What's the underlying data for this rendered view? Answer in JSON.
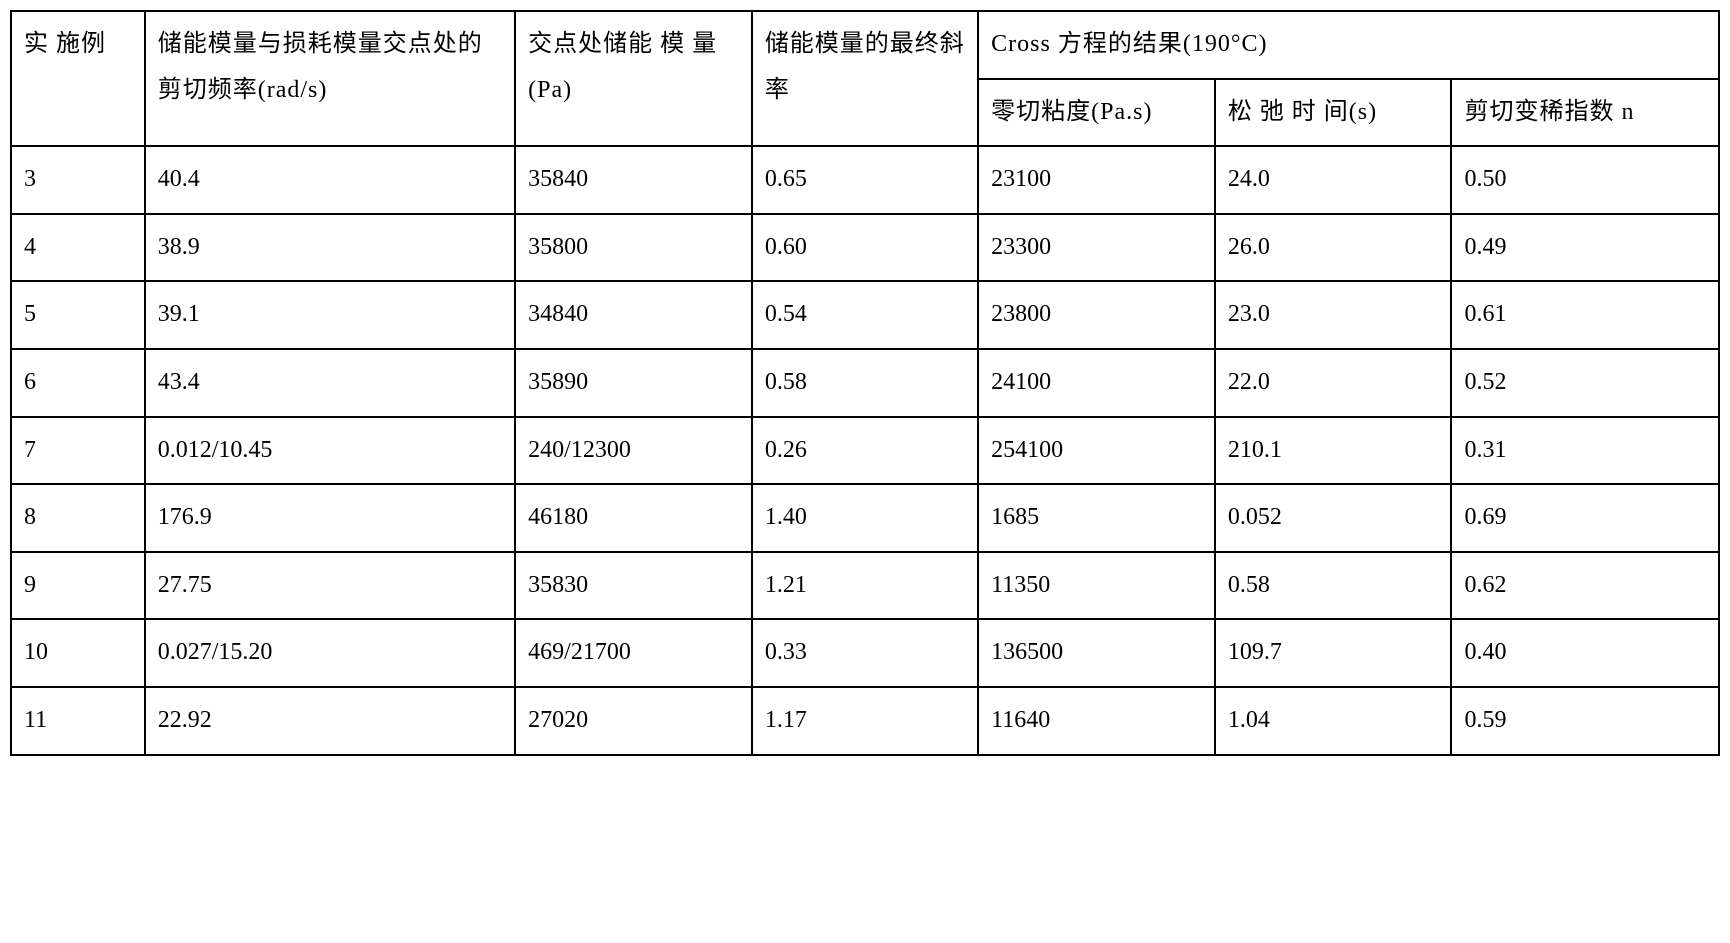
{
  "table": {
    "headers": {
      "example": "实 施例",
      "shear_freq": "储能模量与损耗模量交点处的剪切频率(rad/s)",
      "storage_modulus": "交点处储能 模 量(Pa)",
      "final_slope": "储能模量的最终斜率",
      "cross_results": "Cross 方程的结果(190°C)",
      "zero_shear_visc": "零切粘度(Pa.s)",
      "relaxation_time": "松 弛 时 间(s)",
      "shear_thinning_index": "剪切变稀指数 n"
    },
    "rows": [
      {
        "example": "3",
        "shear_freq": "40.4",
        "storage_modulus": "35840",
        "final_slope": "0.65",
        "zero_shear_visc": "23100",
        "relaxation_time": "24.0",
        "shear_thinning_index": "0.50"
      },
      {
        "example": "4",
        "shear_freq": "38.9",
        "storage_modulus": "35800",
        "final_slope": "0.60",
        "zero_shear_visc": "23300",
        "relaxation_time": "26.0",
        "shear_thinning_index": "0.49"
      },
      {
        "example": "5",
        "shear_freq": "39.1",
        "storage_modulus": "34840",
        "final_slope": "0.54",
        "zero_shear_visc": "23800",
        "relaxation_time": "23.0",
        "shear_thinning_index": "0.61"
      },
      {
        "example": "6",
        "shear_freq": "43.4",
        "storage_modulus": "35890",
        "final_slope": "0.58",
        "zero_shear_visc": "24100",
        "relaxation_time": "22.0",
        "shear_thinning_index": "0.52"
      },
      {
        "example": "7",
        "shear_freq": "0.012/10.45",
        "storage_modulus": "240/12300",
        "final_slope": "0.26",
        "zero_shear_visc": "254100",
        "relaxation_time": "210.1",
        "shear_thinning_index": "0.31"
      },
      {
        "example": "8",
        "shear_freq": "176.9",
        "storage_modulus": "46180",
        "final_slope": "1.40",
        "zero_shear_visc": "1685",
        "relaxation_time": "0.052",
        "shear_thinning_index": "0.69"
      },
      {
        "example": "9",
        "shear_freq": "27.75",
        "storage_modulus": "35830",
        "final_slope": "1.21",
        "zero_shear_visc": "11350",
        "relaxation_time": "0.58",
        "shear_thinning_index": "0.62"
      },
      {
        "example": "10",
        "shear_freq": "0.027/15.20",
        "storage_modulus": "469/21700",
        "final_slope": "0.33",
        "zero_shear_visc": "136500",
        "relaxation_time": "109.7",
        "shear_thinning_index": "0.40"
      },
      {
        "example": "11",
        "shear_freq": "22.92",
        "storage_modulus": "27020",
        "final_slope": "1.17",
        "zero_shear_visc": "11640",
        "relaxation_time": "1.04",
        "shear_thinning_index": "0.59"
      }
    ],
    "styling": {
      "border_color": "#000000",
      "border_width": 2,
      "background_color": "#ffffff",
      "text_color": "#000000",
      "font_size": 24,
      "font_family": "SimSun",
      "cell_padding": 12,
      "line_height": 1.9
    }
  }
}
